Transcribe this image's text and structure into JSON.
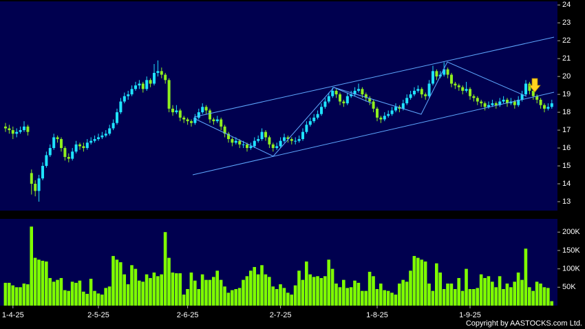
{
  "chart_data": [
    {
      "type": "candlestick",
      "up_color": "#1fe3ff",
      "down_color": "#8fef1f",
      "ylim": [
        12.5,
        24.2
      ],
      "yticks": [
        13,
        14,
        15,
        16,
        17,
        18,
        19,
        20,
        21,
        22,
        23,
        24
      ],
      "open": [
        17.2,
        17.1,
        17.0,
        16.8,
        16.9,
        17.0,
        17.2,
        14.6,
        14.0,
        13.6,
        14.3,
        15.0,
        15.6,
        16.0,
        16.6,
        16.5,
        16.0,
        15.5,
        15.4,
        15.8,
        16.2,
        16.1,
        16.0,
        16.3,
        16.4,
        16.5,
        16.6,
        16.7,
        16.8,
        17.1,
        17.4,
        18.0,
        18.6,
        18.9,
        19.0,
        19.3,
        19.5,
        19.6,
        19.3,
        19.8,
        19.6,
        20.2,
        20.3,
        20.1,
        19.8,
        18.2,
        18.0,
        18.1,
        17.7,
        17.6,
        17.5,
        17.4,
        17.7,
        18.0,
        18.3,
        18.1,
        17.6,
        17.5,
        17.6,
        17.2,
        16.8,
        16.5,
        16.3,
        16.4,
        16.2,
        16.2,
        16.0,
        16.1,
        16.4,
        16.5,
        16.9,
        16.6,
        16.2,
        16.0,
        16.1,
        16.4,
        16.6,
        16.5,
        16.4,
        16.4,
        16.5,
        16.9,
        17.3,
        17.5,
        17.7,
        17.9,
        18.3,
        18.6,
        18.9,
        19.2,
        19.0,
        18.6,
        18.5,
        18.9,
        19.0,
        19.2,
        19.3,
        19.0,
        18.8,
        18.6,
        18.2,
        17.7,
        17.6,
        17.8,
        17.9,
        18.1,
        18.3,
        18.2,
        18.5,
        18.8,
        19.0,
        19.2,
        19.3,
        19.0,
        18.9,
        19.6,
        20.3,
        20.0,
        20.1,
        20.4,
        20.1,
        19.6,
        19.5,
        19.4,
        19.2,
        19.3,
        18.9,
        18.8,
        18.6,
        18.5,
        18.3,
        18.4,
        18.5,
        18.4,
        18.6,
        18.7,
        18.5,
        18.6,
        18.4,
        18.7,
        19.0,
        19.6,
        19.2,
        18.9,
        18.7,
        18.4,
        18.2,
        18.3
      ],
      "high": [
        17.4,
        17.3,
        17.2,
        17.1,
        17.2,
        17.5,
        17.3,
        14.8,
        14.2,
        14.5,
        15.2,
        15.8,
        16.2,
        16.8,
        16.7,
        16.6,
        16.1,
        15.7,
        16.0,
        16.4,
        16.3,
        16.3,
        16.5,
        16.6,
        16.7,
        16.8,
        16.9,
        17.0,
        17.3,
        17.6,
        18.2,
        18.8,
        19.1,
        19.2,
        19.5,
        19.7,
        19.8,
        19.7,
        20.0,
        19.9,
        20.7,
        20.9,
        20.5,
        20.2,
        19.9,
        18.4,
        18.4,
        18.2,
        17.8,
        17.7,
        17.6,
        17.9,
        18.2,
        18.5,
        18.4,
        18.2,
        17.7,
        17.8,
        17.7,
        17.3,
        16.9,
        16.6,
        16.6,
        16.5,
        16.4,
        16.3,
        16.3,
        16.6,
        16.7,
        17.1,
        17.0,
        16.7,
        16.3,
        16.3,
        16.6,
        16.8,
        16.7,
        16.6,
        16.6,
        16.7,
        17.1,
        17.5,
        17.7,
        17.9,
        18.1,
        18.5,
        18.8,
        19.1,
        19.4,
        19.3,
        19.1,
        18.7,
        19.1,
        19.2,
        19.4,
        19.6,
        19.4,
        19.1,
        18.9,
        18.7,
        18.3,
        17.8,
        18.0,
        18.1,
        18.3,
        18.5,
        18.4,
        18.7,
        19.0,
        19.2,
        19.4,
        19.5,
        19.4,
        19.1,
        19.8,
        20.6,
        20.4,
        20.3,
        20.8,
        20.5,
        20.2,
        19.7,
        19.6,
        19.5,
        19.7,
        19.4,
        19.0,
        18.9,
        18.7,
        18.6,
        18.6,
        18.7,
        18.6,
        18.8,
        18.9,
        18.8,
        18.8,
        18.7,
        18.9,
        19.2,
        19.8,
        19.7,
        19.3,
        19.0,
        18.8,
        18.5,
        18.5,
        18.7
      ],
      "low": [
        16.9,
        16.8,
        16.5,
        16.6,
        16.8,
        16.9,
        16.7,
        13.4,
        13.3,
        13.0,
        14.2,
        14.9,
        15.5,
        15.9,
        16.3,
        15.8,
        15.3,
        15.2,
        15.3,
        15.7,
        15.9,
        15.8,
        15.9,
        16.2,
        16.3,
        16.4,
        16.5,
        16.6,
        16.7,
        17.0,
        17.3,
        17.9,
        18.5,
        18.7,
        18.9,
        19.2,
        19.3,
        19.1,
        19.2,
        19.4,
        19.5,
        20.0,
        19.9,
        19.6,
        18.0,
        17.8,
        17.9,
        17.5,
        17.4,
        17.3,
        17.2,
        17.3,
        17.6,
        17.9,
        17.9,
        17.4,
        17.3,
        17.4,
        17.0,
        16.6,
        16.3,
        16.1,
        16.2,
        16.0,
        16.0,
        15.8,
        15.9,
        16.0,
        16.3,
        16.4,
        16.4,
        16.0,
        15.8,
        15.9,
        16.0,
        16.3,
        16.3,
        16.2,
        16.2,
        16.3,
        16.4,
        16.8,
        17.2,
        17.4,
        17.6,
        17.8,
        18.2,
        18.5,
        18.8,
        18.8,
        18.4,
        18.3,
        18.4,
        18.8,
        18.9,
        19.1,
        18.8,
        18.6,
        18.4,
        18.0,
        17.5,
        17.4,
        17.5,
        17.7,
        17.8,
        18.0,
        18.0,
        18.1,
        18.4,
        18.7,
        18.9,
        19.1,
        18.8,
        18.7,
        18.8,
        19.5,
        19.8,
        19.9,
        20.0,
        19.9,
        19.4,
        19.3,
        19.2,
        19.0,
        19.1,
        18.7,
        18.6,
        18.4,
        18.3,
        18.1,
        18.2,
        18.3,
        18.2,
        18.3,
        18.5,
        18.3,
        18.4,
        18.2,
        18.3,
        18.6,
        18.9,
        19.0,
        18.7,
        18.5,
        18.2,
        18.0,
        18.1,
        18.2
      ],
      "close": [
        17.1,
        17.0,
        16.8,
        16.9,
        17.0,
        17.2,
        16.9,
        14.0,
        13.6,
        14.3,
        15.0,
        15.6,
        16.0,
        16.6,
        16.5,
        16.0,
        15.5,
        15.4,
        15.8,
        16.2,
        16.1,
        16.0,
        16.3,
        16.4,
        16.5,
        16.6,
        16.7,
        16.8,
        17.1,
        17.4,
        18.0,
        18.6,
        18.9,
        19.0,
        19.3,
        19.5,
        19.6,
        19.3,
        19.8,
        19.6,
        20.2,
        20.3,
        20.1,
        19.8,
        18.2,
        18.0,
        18.1,
        17.7,
        17.6,
        17.5,
        17.4,
        17.7,
        18.0,
        18.3,
        18.1,
        17.6,
        17.5,
        17.6,
        17.2,
        16.8,
        16.5,
        16.3,
        16.4,
        16.2,
        16.2,
        16.0,
        16.1,
        16.4,
        16.5,
        16.9,
        16.6,
        16.2,
        16.0,
        16.1,
        16.4,
        16.6,
        16.5,
        16.4,
        16.4,
        16.5,
        16.9,
        17.3,
        17.5,
        17.7,
        17.9,
        18.3,
        18.6,
        18.9,
        19.2,
        19.0,
        18.6,
        18.5,
        18.9,
        19.0,
        19.2,
        19.3,
        19.0,
        18.8,
        18.6,
        18.2,
        17.7,
        17.6,
        17.8,
        17.9,
        18.1,
        18.3,
        18.2,
        18.5,
        18.8,
        19.0,
        19.2,
        19.3,
        19.0,
        18.9,
        19.6,
        20.3,
        20.0,
        20.1,
        20.4,
        20.1,
        19.6,
        19.5,
        19.4,
        19.2,
        19.3,
        18.9,
        18.8,
        18.6,
        18.5,
        18.3,
        18.4,
        18.5,
        18.4,
        18.6,
        18.7,
        18.5,
        18.6,
        18.4,
        18.7,
        19.0,
        19.6,
        19.2,
        18.9,
        18.7,
        18.4,
        18.2,
        18.3,
        18.5
      ]
    },
    {
      "type": "bar",
      "color": "#7fff00",
      "ylim": [
        0,
        236000
      ],
      "yticks": [
        {
          "value": 50000,
          "label": "50K"
        },
        {
          "value": 100000,
          "label": "100K"
        },
        {
          "value": 150000,
          "label": "150K"
        },
        {
          "value": 200000,
          "label": "200K"
        }
      ],
      "categories": [
        null,
        null,
        "1-4-25",
        null,
        null,
        null,
        null,
        null,
        null,
        null,
        null,
        null,
        null,
        null,
        null,
        null,
        null,
        null,
        null,
        null,
        null,
        null,
        null,
        null,
        null,
        "2-5-25",
        null,
        null,
        null,
        null,
        null,
        null,
        null,
        null,
        null,
        null,
        null,
        null,
        null,
        null,
        null,
        null,
        null,
        null,
        null,
        null,
        null,
        null,
        null,
        "2-6-25",
        null,
        null,
        null,
        null,
        null,
        null,
        null,
        null,
        null,
        null,
        null,
        null,
        null,
        null,
        null,
        null,
        null,
        null,
        null,
        null,
        null,
        null,
        null,
        null,
        "2-7-25",
        null,
        null,
        null,
        null,
        null,
        null,
        null,
        null,
        null,
        null,
        null,
        null,
        null,
        null,
        null,
        null,
        null,
        null,
        null,
        null,
        null,
        null,
        null,
        null,
        null,
        "1-8-25",
        null,
        null,
        null,
        null,
        null,
        null,
        null,
        null,
        null,
        null,
        null,
        null,
        null,
        null,
        null,
        null,
        null,
        null,
        null,
        null,
        null,
        null,
        null,
        null,
        "1-9-25",
        null,
        null,
        null,
        null,
        null,
        null,
        null,
        null,
        null,
        null,
        null,
        null,
        null,
        null,
        null,
        null,
        null,
        null,
        null,
        null,
        null,
        null
      ],
      "values": [
        62000,
        62000,
        55000,
        50000,
        50000,
        60000,
        58000,
        215000,
        130000,
        125000,
        122000,
        120000,
        75000,
        65000,
        70000,
        75000,
        42000,
        40000,
        65000,
        62000,
        68000,
        38000,
        32000,
        73000,
        40000,
        33000,
        30000,
        48000,
        52000,
        135000,
        125000,
        118000,
        85000,
        58000,
        110000,
        100000,
        68000,
        65000,
        85000,
        75000,
        90000,
        80000,
        85000,
        200000,
        130000,
        90000,
        88000,
        88000,
        30000,
        45000,
        90000,
        68000,
        45000,
        85000,
        70000,
        70000,
        78000,
        95000,
        70000,
        52000,
        35000,
        42000,
        45000,
        48000,
        70000,
        80000,
        95000,
        105000,
        85000,
        110000,
        85000,
        78000,
        52000,
        45000,
        58000,
        48000,
        35000,
        30000,
        55000,
        95000,
        70000,
        120000,
        85000,
        78000,
        80000,
        75000,
        80000,
        125000,
        100000,
        60000,
        50000,
        70000,
        48000,
        50000,
        68000,
        62000,
        40000,
        40000,
        92000,
        80000,
        45000,
        60000,
        42000,
        40000,
        35000,
        30000,
        60000,
        70000,
        65000,
        95000,
        135000,
        130000,
        125000,
        120000,
        60000,
        40000,
        115000,
        90000,
        45000,
        60000,
        60000,
        45000,
        75000,
        40000,
        100000,
        45000,
        45000,
        48000,
        85000,
        75000,
        80000,
        65000,
        50000,
        80000,
        45000,
        60000,
        50000,
        65000,
        90000,
        70000,
        155000,
        50000,
        40000,
        65000,
        60000,
        50000,
        48000,
        12000
      ]
    }
  ],
  "footer": "Copyright by AASTOCKS.com Ltd."
}
